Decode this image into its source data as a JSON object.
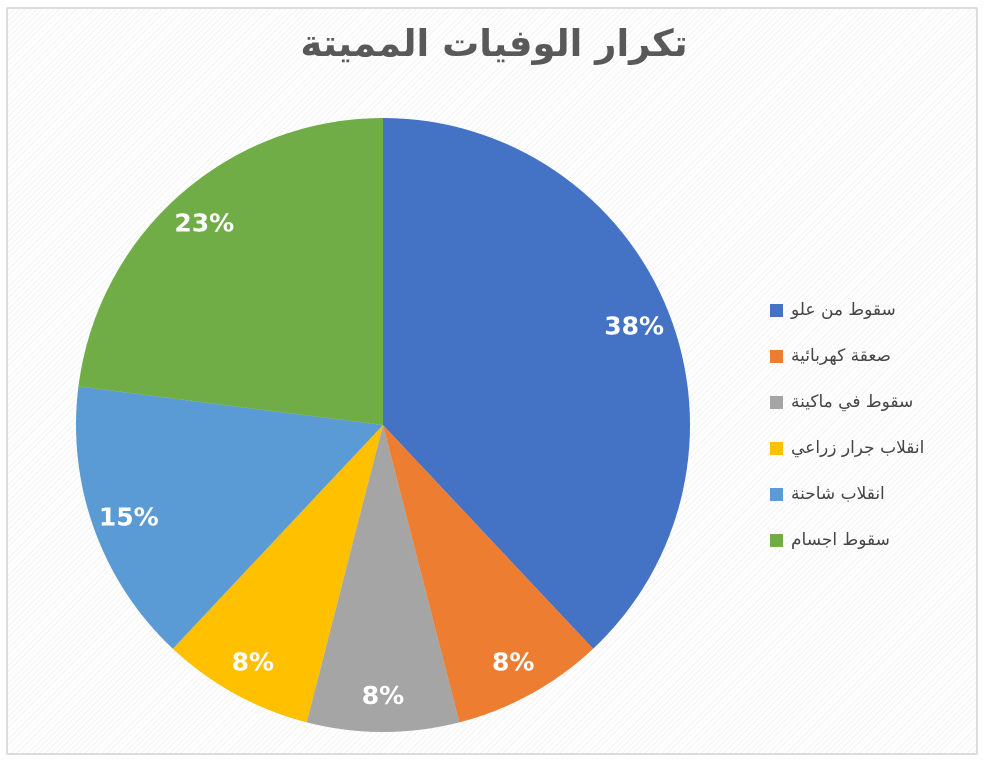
{
  "title": "تكرار الوفيات المميتة",
  "chart_data": {
    "type": "pie",
    "title": "تكرار الوفيات المميتة",
    "legend_position": "right",
    "start_angle_deg": 0,
    "direction": "clockwise",
    "total": 100,
    "slices": [
      {
        "label": "سقوط من علو",
        "value": 38,
        "display": "38%",
        "color": "#4472C4"
      },
      {
        "label": "صعقة كهربائية",
        "value": 8,
        "display": "8%",
        "color": "#ED7D31"
      },
      {
        "label": "سقوط في ماكينة",
        "value": 8,
        "display": "8%",
        "color": "#A5A5A5"
      },
      {
        "label": "انقلاب جرار زراعي",
        "value": 8,
        "display": "8%",
        "color": "#FFC000"
      },
      {
        "label": "انقلاب شاحنة",
        "value": 15,
        "display": "15%",
        "color": "#5B9BD5"
      },
      {
        "label": "سقوط اجسام",
        "value": 23,
        "display": "23%",
        "color": "#70AD47"
      }
    ]
  },
  "colors": {
    "title_text": "#595959",
    "legend_text": "#454545",
    "slice_label_text": "#FFFFFF",
    "frame_border": "#DCDCDC"
  }
}
